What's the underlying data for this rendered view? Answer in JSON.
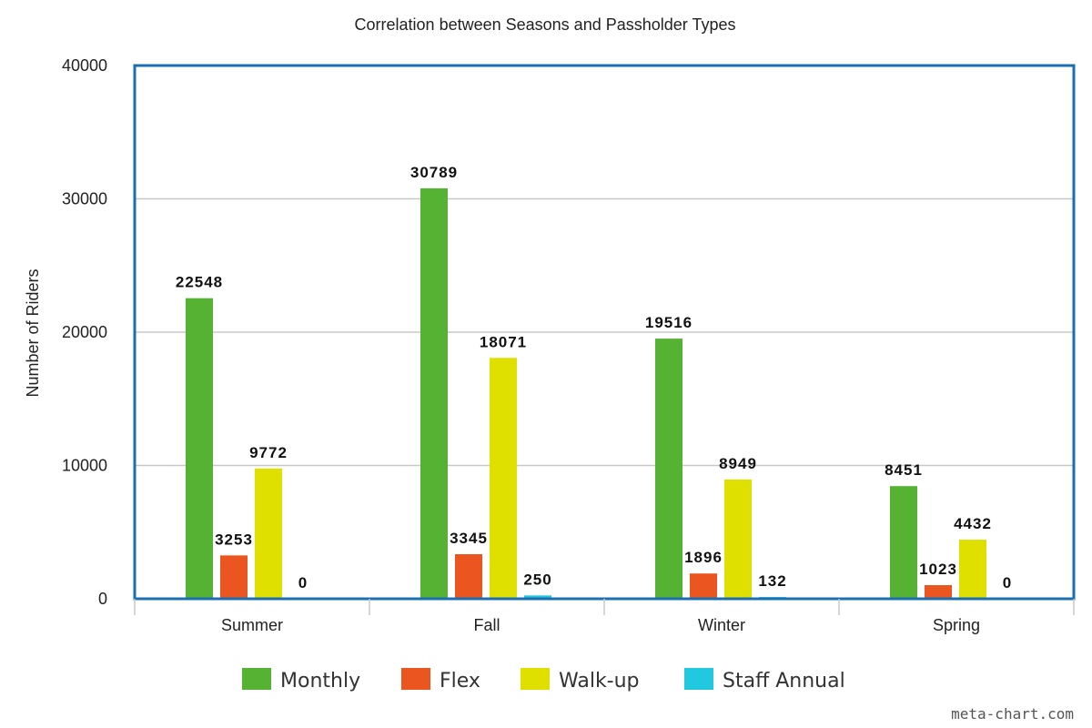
{
  "chart_data": {
    "type": "bar",
    "title": "Correlation between Seasons and Passholder Types",
    "xlabel": "",
    "ylabel": "Number of Riders",
    "categories": [
      "Summer",
      "Fall",
      "Winter",
      "Spring"
    ],
    "ylim": [
      0,
      40000
    ],
    "yticks": [
      "0",
      "10000",
      "20000",
      "30000",
      "40000"
    ],
    "grid": true,
    "legend_position": "bottom",
    "series": [
      {
        "name": "Monthly",
        "color": "#55b233",
        "values": [
          22548,
          30789,
          19516,
          8451
        ],
        "labels": [
          "22548",
          "30789",
          "19516",
          "8451"
        ]
      },
      {
        "name": "Flex",
        "color": "#ea5520",
        "values": [
          3253,
          3345,
          1896,
          1023
        ],
        "labels": [
          "3253",
          "3345",
          "1896",
          "1023"
        ]
      },
      {
        "name": "Walk-up",
        "color": "#dfdf00",
        "values": [
          9772,
          18071,
          8949,
          4432
        ],
        "labels": [
          "9772",
          "18071",
          "8949",
          "4432"
        ]
      },
      {
        "name": "Staff Annual",
        "color": "#22c8e0",
        "values": [
          0,
          250,
          132,
          0
        ],
        "labels": [
          "0",
          "250",
          "132",
          "0"
        ]
      }
    ]
  },
  "watermark": "meta-chart.com"
}
